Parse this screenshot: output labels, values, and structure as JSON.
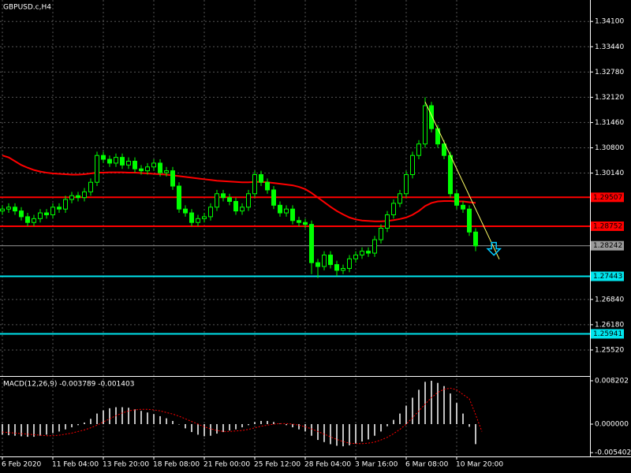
{
  "chart_data": [
    {
      "type": "candlestick",
      "title": "GBPUSD.c,H4",
      "categories": [
        "6 Feb 2020",
        null,
        null,
        null,
        null,
        null,
        null,
        null,
        "11 Feb 04:00",
        null,
        null,
        null,
        null,
        null,
        null,
        null,
        "13 Feb 20:00",
        null,
        null,
        null,
        null,
        null,
        null,
        null,
        "18 Feb 08:00",
        null,
        null,
        null,
        null,
        null,
        null,
        null,
        "21 Feb 00:00",
        null,
        null,
        null,
        null,
        null,
        null,
        null,
        "25 Feb 12:00",
        null,
        null,
        null,
        null,
        null,
        null,
        null,
        "28 Feb 04:00",
        null,
        null,
        null,
        null,
        null,
        null,
        null,
        "3 Mar 16:00",
        null,
        null,
        null,
        null,
        null,
        null,
        null,
        "6 Mar 08:00",
        null,
        null,
        null,
        null,
        null,
        null,
        null,
        "10 Mar 20:00",
        null,
        null,
        null
      ],
      "open": [
        1.2915,
        1.292,
        1.2925,
        1.2915,
        1.29,
        1.2885,
        1.2895,
        1.291,
        1.2905,
        1.2925,
        1.292,
        1.2945,
        1.2955,
        1.295,
        1.2965,
        1.299,
        1.306,
        1.305,
        1.304,
        1.3055,
        1.3035,
        1.3045,
        1.3025,
        1.302,
        1.303,
        1.304,
        1.3015,
        1.302,
        1.298,
        1.292,
        1.291,
        1.2885,
        1.2895,
        1.29,
        1.2925,
        1.296,
        1.295,
        1.294,
        1.2915,
        1.2925,
        1.296,
        1.301,
        1.299,
        1.297,
        1.293,
        1.291,
        1.292,
        1.289,
        1.2885,
        1.288,
        1.278,
        1.277,
        1.28,
        1.2775,
        1.276,
        1.2765,
        1.279,
        1.28,
        1.281,
        1.2805,
        1.284,
        1.287,
        1.2905,
        1.2935,
        1.296,
        1.301,
        1.306,
        1.309,
        1.319,
        1.313,
        1.309,
        1.306,
        1.296,
        1.293,
        1.292,
        1.286
      ],
      "high": [
        1.293,
        1.2935,
        1.2935,
        1.2925,
        1.291,
        1.2905,
        1.292,
        1.292,
        1.2935,
        1.2935,
        1.2955,
        1.2965,
        1.2965,
        1.2975,
        1.3,
        1.307,
        1.307,
        1.306,
        1.3065,
        1.3065,
        1.3055,
        1.3055,
        1.3035,
        1.304,
        1.305,
        1.305,
        1.303,
        1.303,
        1.299,
        1.293,
        1.292,
        1.2905,
        1.291,
        1.2935,
        1.297,
        1.297,
        1.296,
        1.295,
        1.2935,
        1.297,
        1.302,
        1.302,
        1.3,
        1.298,
        1.294,
        1.293,
        1.293,
        1.29,
        1.2895,
        1.289,
        1.279,
        1.281,
        1.281,
        1.2785,
        1.2775,
        1.28,
        1.281,
        1.282,
        1.282,
        1.285,
        1.288,
        1.2915,
        1.2945,
        1.297,
        1.302,
        1.307,
        1.31,
        1.3212,
        1.32,
        1.314,
        1.31,
        1.307,
        1.297,
        1.294,
        1.293,
        1.287
      ],
      "low": [
        1.2905,
        1.291,
        1.2905,
        1.289,
        1.2875,
        1.2875,
        1.2885,
        1.2895,
        1.2895,
        1.291,
        1.291,
        1.2935,
        1.294,
        1.294,
        1.2955,
        1.298,
        1.304,
        1.303,
        1.303,
        1.3025,
        1.3025,
        1.3015,
        1.301,
        1.301,
        1.302,
        1.3005,
        1.3005,
        1.297,
        1.291,
        1.29,
        1.2875,
        1.2875,
        1.2885,
        1.289,
        1.2915,
        1.294,
        1.293,
        1.2905,
        1.2905,
        1.2915,
        1.295,
        1.298,
        1.296,
        1.292,
        1.29,
        1.29,
        1.288,
        1.2875,
        1.287,
        1.275,
        1.274,
        1.276,
        1.2765,
        1.2745,
        1.275,
        1.2755,
        1.278,
        1.279,
        1.2795,
        1.2795,
        1.283,
        1.286,
        1.2895,
        1.2925,
        1.295,
        1.3,
        1.305,
        1.308,
        1.312,
        1.308,
        1.305,
        1.295,
        1.292,
        1.291,
        1.285,
        1.281
      ],
      "close": [
        1.292,
        1.2925,
        1.2915,
        1.29,
        1.2885,
        1.2895,
        1.291,
        1.2905,
        1.2925,
        1.292,
        1.2945,
        1.2955,
        1.295,
        1.2965,
        1.299,
        1.306,
        1.305,
        1.304,
        1.3055,
        1.3035,
        1.3045,
        1.3025,
        1.302,
        1.303,
        1.304,
        1.3015,
        1.302,
        1.298,
        1.292,
        1.291,
        1.2885,
        1.2895,
        1.29,
        1.2925,
        1.296,
        1.295,
        1.294,
        1.2915,
        1.2925,
        1.296,
        1.301,
        1.299,
        1.297,
        1.293,
        1.291,
        1.292,
        1.289,
        1.2885,
        1.288,
        1.278,
        1.277,
        1.28,
        1.2775,
        1.276,
        1.2765,
        1.279,
        1.28,
        1.281,
        1.2805,
        1.284,
        1.287,
        1.2905,
        1.2935,
        1.296,
        1.301,
        1.306,
        1.309,
        1.319,
        1.313,
        1.309,
        1.306,
        1.296,
        1.293,
        1.292,
        1.286,
        1.2824
      ],
      "color": "#00ff00",
      "moving_average": {
        "color": "#ff0000",
        "values": [
          1.306,
          1.3055,
          1.3045,
          1.3035,
          1.3028,
          1.3022,
          1.3018,
          1.3015,
          1.3013,
          1.3012,
          1.3011,
          1.301,
          1.301,
          1.3011,
          1.3013,
          1.3015,
          1.3015,
          1.3016,
          1.3016,
          1.3016,
          1.3015,
          1.3015,
          1.3014,
          1.3013,
          1.3012,
          1.3011,
          1.301,
          1.3008,
          1.3006,
          1.3004,
          1.3002,
          1.3,
          1.2998,
          1.2996,
          1.2994,
          1.2993,
          1.2992,
          1.2991,
          1.299,
          1.299,
          1.2991,
          1.2991,
          1.299,
          1.2988,
          1.2986,
          1.2984,
          1.2982,
          1.2978,
          1.2972,
          1.2962,
          1.295,
          1.2938,
          1.2926,
          1.2915,
          1.2906,
          1.2898,
          1.2893,
          1.289,
          1.2889,
          1.2888,
          1.2888,
          1.2889,
          1.2891,
          1.2894,
          1.2898,
          1.2905,
          1.2915,
          1.2928,
          1.2936,
          1.294,
          1.2941,
          1.2941,
          1.294,
          1.294,
          1.2938,
          1.2936
        ]
      },
      "trendline": {
        "color": "#ffff66",
        "x": [
          67,
          78.75
        ],
        "y": [
          1.32,
          1.2789
        ]
      },
      "arrow": {
        "color": "#00ccff",
        "x": 77.9,
        "y": 1.2812
      },
      "hlines": [
        {
          "value": 1.29507,
          "label": "1.29507",
          "color": "#ff0000"
        },
        {
          "value": 1.28752,
          "label": "1.28752",
          "color": "#ff0000"
        },
        {
          "value": 1.28242,
          "label": "1.28242",
          "color": "#9a9a9a"
        },
        {
          "value": 1.27443,
          "label": "1.27443",
          "color": "#00e5ee"
        },
        {
          "value": 1.25941,
          "label": "1.25941",
          "color": "#00e5ee"
        }
      ],
      "ylim": [
        1.2486,
        1.3466
      ],
      "yticks": [
        {
          "value": 1.341,
          "label": "1.34100"
        },
        {
          "value": 1.3344,
          "label": "1.33440"
        },
        {
          "value": 1.3278,
          "label": "1.32780"
        },
        {
          "value": 1.3212,
          "label": "1.32120"
        },
        {
          "value": 1.3146,
          "label": "1.31460"
        },
        {
          "value": 1.308,
          "label": "1.30800"
        },
        {
          "value": 1.3014,
          "label": "1.30140"
        },
        {
          "value": 1.2684,
          "label": "1.26840"
        },
        {
          "value": 1.2618,
          "label": "1.26180"
        },
        {
          "value": 1.2552,
          "label": "1.25520"
        }
      ],
      "grid": true
    },
    {
      "type": "macd",
      "title": "MACD(12,26,9) -0.003789 -0.001403",
      "values": [
        -0.002,
        -0.0021,
        -0.0022,
        -0.0023,
        -0.0024,
        -0.0024,
        -0.0022,
        -0.002,
        -0.0017,
        -0.0014,
        -0.001,
        -0.0006,
        -0.0002,
        0.0003,
        0.001,
        0.002,
        0.0026,
        0.003,
        0.0032,
        0.0032,
        0.0031,
        0.0028,
        0.0025,
        0.0022,
        0.0019,
        0.0015,
        0.0011,
        0.0006,
        0.0,
        -0.0008,
        -0.0015,
        -0.002,
        -0.0023,
        -0.0022,
        -0.0018,
        -0.0015,
        -0.0012,
        -0.001,
        -0.0006,
        -0.0002,
        0.0004,
        0.0006,
        0.0006,
        0.0004,
        0.0001,
        -0.0002,
        -0.0006,
        -0.001,
        -0.0014,
        -0.0022,
        -0.003,
        -0.0034,
        -0.0038,
        -0.0041,
        -0.0042,
        -0.004,
        -0.0037,
        -0.0033,
        -0.0029,
        -0.0022,
        -0.0014,
        -0.0004,
        0.0008,
        0.002,
        0.0035,
        0.005,
        0.0065,
        0.008,
        0.0082,
        0.0078,
        0.0072,
        0.0058,
        0.004,
        0.002,
        -0.0005,
        -0.003789
      ],
      "color": "#c0c0c0",
      "signal": {
        "color": "#ff0000",
        "values": [
          -0.0015,
          -0.0016,
          -0.0017,
          -0.0018,
          -0.0019,
          -0.002,
          -0.0021,
          -0.0022,
          -0.0022,
          -0.0021,
          -0.0019,
          -0.0017,
          -0.0014,
          -0.0011,
          -0.0007,
          -0.0002,
          0.0004,
          0.001,
          0.0016,
          0.0021,
          0.0025,
          0.0027,
          0.0028,
          0.0028,
          0.0027,
          0.0025,
          0.0022,
          0.0019,
          0.0015,
          0.001,
          0.0005,
          0.0,
          -0.0005,
          -0.0009,
          -0.0012,
          -0.0014,
          -0.0014,
          -0.0013,
          -0.0012,
          -0.001,
          -0.0007,
          -0.0004,
          -0.0002,
          0.0,
          0.0001,
          0.0001,
          0.0,
          -0.0002,
          -0.0005,
          -0.0009,
          -0.0014,
          -0.0019,
          -0.0024,
          -0.0029,
          -0.0033,
          -0.0036,
          -0.0037,
          -0.0037,
          -0.0036,
          -0.0034,
          -0.003,
          -0.0025,
          -0.0018,
          -0.001,
          0.0,
          0.0012,
          0.0025,
          0.0038,
          0.005,
          0.006,
          0.0066,
          0.0068,
          0.0065,
          0.0056,
          0.0048,
          0.0018,
          -0.001403
        ]
      },
      "ylim": [
        -0.00597,
        0.00895
      ],
      "yticks": [
        {
          "value": 0.008202,
          "label": "0.008202"
        },
        {
          "value": 0,
          "label": "0.000000"
        },
        {
          "value": -0.005402,
          "label": "-0.005402"
        }
      ]
    }
  ]
}
